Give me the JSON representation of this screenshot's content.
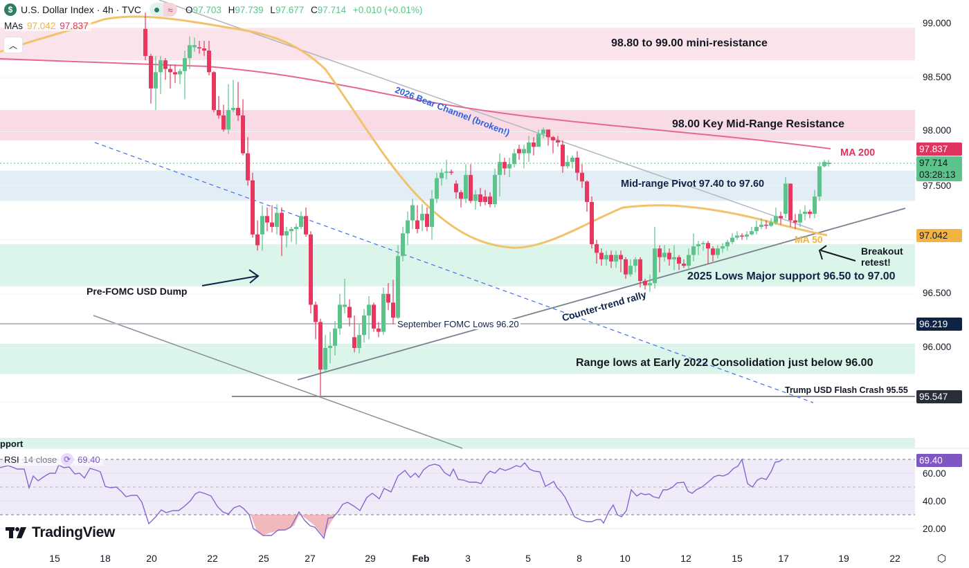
{
  "header": {
    "symbol_icon": "dollar-icon",
    "title": "U.S. Dollar Index · 4h · TVC",
    "ohlc": {
      "O": "97.703",
      "H": "97.739",
      "L": "97.677",
      "C": "97.714",
      "change": "+0.010 (+0.01%)"
    },
    "mas_label": "MAs",
    "ma50_value": "97.042",
    "ma200_value": "97.837",
    "collapse_icon": "chevron-up-icon"
  },
  "price_axis": {
    "ticks": [
      "99.000",
      "98.500",
      "98.000",
      "97.500",
      "96.500",
      "96.000"
    ],
    "tags": {
      "ma200": {
        "value": "97.837",
        "color": "#e0345e"
      },
      "last": {
        "value": "97.714",
        "countdown": "03:28:13",
        "color": "#5cc38a"
      },
      "ma50": {
        "value": "97.042",
        "color": "#f0b443"
      },
      "fomc": {
        "value": "96.219",
        "color": "#0f2347"
      },
      "flash": {
        "value": "95.547",
        "color": "#2a2e39"
      },
      "rsi": {
        "value": "69.40",
        "color": "#7e57c2"
      }
    }
  },
  "rsi_axis": {
    "ticks": [
      "60.00",
      "40.00",
      "20.00"
    ]
  },
  "rsi_legend": {
    "label": "RSI",
    "params": "14 close",
    "value": "69.40",
    "icon": "cycle-icon"
  },
  "time_axis": {
    "labels": [
      "15",
      "18",
      "20",
      "22",
      "25",
      "27",
      "29",
      "Feb",
      "3",
      "5",
      "8",
      "10",
      "12",
      "15",
      "17",
      "19",
      "22"
    ]
  },
  "brand": "TradingView",
  "annotations": {
    "mini_resistance": "98.80 to 99.00 mini-resistance",
    "key_resistance": "98.00 Key Mid-Range Resistance",
    "bear_channel": "2026 Bear Channel (broken!)",
    "ma200": "MA 200",
    "ma50": "MA 50",
    "pivot": "Mid-range Pivot 97.40 to 97.60",
    "breakout": "Breakout",
    "breakout2": "retest!",
    "lows_support": "2025 Lows Major support 96.50 to 97.00",
    "pre_fomc": "Pre-FOMC USD Dump",
    "counter_trend": "Counter-trend rally",
    "sept_fomc": "September FOMC Lows 96.20",
    "range_lows": "Range lows at Early 2022 Consolidation just below 96.00",
    "flash_crash": "Trump USD Flash Crash 95.55",
    "support_cut": "pport"
  },
  "chart_data": {
    "type": "candlestick",
    "title": "U.S. Dollar Index · 4h · TVC",
    "xlabel": "",
    "ylabel": "Price",
    "ylim": [
      95.3,
      99.2
    ],
    "x_ticks": [
      "15",
      "18",
      "20",
      "22",
      "25",
      "27",
      "29",
      "Feb",
      "3",
      "5",
      "8",
      "10",
      "12",
      "15",
      "17",
      "19",
      "22"
    ],
    "zones": [
      {
        "name": "98.80 to 99.00 mini-resistance",
        "from": 98.66,
        "to": 98.96,
        "color": "#fbe3ec"
      },
      {
        "name": "98.00 Key Mid-Range Resistance",
        "from": 97.92,
        "to": 98.2,
        "color": "#f9dbe5"
      },
      {
        "name": "Mid-range Pivot 97.40 to 97.60",
        "from": 97.36,
        "to": 97.64,
        "color": "#e2eef5"
      },
      {
        "name": "2025 Lows Major support 96.50 to 97.00",
        "from": 96.57,
        "to": 96.96,
        "color": "#dcf5ea"
      },
      {
        "name": "Range lows just below 96.00",
        "from": 95.76,
        "to": 96.04,
        "color": "#dcf5ea"
      }
    ],
    "levels": [
      {
        "name": "September FOMC Lows 96.20",
        "value": 96.219
      },
      {
        "name": "Trump USD Flash Crash 95.55",
        "value": 95.547
      }
    ],
    "ma50_last": 97.042,
    "ma200_last": 97.837,
    "last_close": 97.714,
    "candles": [
      [
        210,
        98.95,
        98.7,
        99.1,
        98.66,
        0
      ],
      [
        218,
        98.7,
        98.4,
        98.72,
        98.26,
        0
      ],
      [
        225,
        98.4,
        98.55,
        98.7,
        98.2,
        1
      ],
      [
        232,
        98.55,
        98.66,
        98.7,
        98.35,
        1
      ],
      [
        239,
        98.66,
        98.58,
        98.68,
        98.48,
        0
      ],
      [
        246,
        98.58,
        98.55,
        98.62,
        98.4,
        0
      ],
      [
        253,
        98.55,
        98.53,
        98.62,
        98.45,
        0
      ],
      [
        260,
        98.53,
        98.56,
        98.58,
        98.44,
        1
      ],
      [
        267,
        98.56,
        98.68,
        98.75,
        98.3,
        1
      ],
      [
        274,
        98.68,
        98.8,
        98.88,
        98.58,
        1
      ],
      [
        281,
        98.8,
        98.78,
        98.87,
        98.74,
        1
      ],
      [
        288,
        98.78,
        98.77,
        98.84,
        98.72,
        0
      ],
      [
        295,
        98.77,
        98.75,
        98.84,
        98.7,
        0
      ],
      [
        302,
        98.75,
        98.55,
        98.84,
        98.52,
        0
      ],
      [
        309,
        98.55,
        98.2,
        98.56,
        98.18,
        0
      ],
      [
        316,
        98.2,
        98.15,
        98.33,
        98.12,
        0
      ],
      [
        323,
        98.15,
        98.02,
        98.25,
        98.0,
        0
      ],
      [
        330,
        98.02,
        98.2,
        98.44,
        97.98,
        1
      ],
      [
        337,
        98.2,
        98.22,
        98.48,
        98.18,
        1
      ],
      [
        344,
        98.22,
        98.15,
        98.46,
        98.1,
        0
      ],
      [
        351,
        98.15,
        97.8,
        98.3,
        97.78,
        0
      ],
      [
        358,
        97.8,
        97.55,
        97.95,
        97.5,
        0
      ],
      [
        365,
        97.55,
        97.05,
        97.62,
        97.02,
        0
      ],
      [
        372,
        97.05,
        96.95,
        97.18,
        96.9,
        0
      ],
      [
        379,
        97.05,
        97.22,
        97.32,
        96.9,
        1
      ],
      [
        386,
        97.22,
        97.16,
        97.3,
        97.08,
        0
      ],
      [
        393,
        97.16,
        97.12,
        97.32,
        97.07,
        0
      ],
      [
        400,
        97.12,
        97.25,
        97.33,
        97.05,
        1
      ],
      [
        407,
        97.25,
        97.04,
        97.3,
        96.85,
        0
      ],
      [
        414,
        97.04,
        97.08,
        97.12,
        96.93,
        1
      ],
      [
        421,
        97.08,
        97.1,
        97.12,
        96.98,
        1
      ],
      [
        428,
        97.1,
        97.12,
        97.15,
        96.96,
        1
      ],
      [
        435,
        97.12,
        97.22,
        97.26,
        97.1,
        1
      ],
      [
        442,
        97.22,
        97.05,
        97.3,
        97.03,
        0
      ],
      [
        449,
        97.05,
        96.4,
        97.08,
        96.32,
        0
      ],
      [
        456,
        96.4,
        96.24,
        96.43,
        96.08,
        0
      ],
      [
        463,
        96.24,
        95.8,
        96.27,
        95.56,
        0
      ],
      [
        470,
        95.8,
        96.0,
        96.12,
        95.78,
        1
      ],
      [
        477,
        96.0,
        96.02,
        96.15,
        95.86,
        1
      ],
      [
        484,
        96.02,
        96.18,
        96.25,
        95.93,
        1
      ],
      [
        491,
        96.18,
        96.4,
        96.5,
        96.12,
        1
      ],
      [
        498,
        96.4,
        96.38,
        96.64,
        96.32,
        1
      ],
      [
        505,
        96.38,
        96.28,
        96.45,
        96.2,
        0
      ],
      [
        512,
        96.1,
        96.0,
        96.3,
        95.96,
        0
      ],
      [
        519,
        96.0,
        96.12,
        96.22,
        95.95,
        1
      ],
      [
        526,
        96.12,
        96.3,
        96.36,
        96.05,
        1
      ],
      [
        533,
        96.3,
        96.4,
        96.48,
        96.08,
        1
      ],
      [
        540,
        96.4,
        96.18,
        96.42,
        96.15,
        0
      ],
      [
        547,
        96.18,
        96.15,
        96.24,
        96.1,
        0
      ],
      [
        554,
        96.15,
        96.5,
        96.56,
        96.12,
        1
      ],
      [
        561,
        96.5,
        96.42,
        96.6,
        96.35,
        0
      ],
      [
        568,
        96.42,
        96.28,
        96.63,
        96.22,
        0
      ],
      [
        575,
        96.28,
        96.85,
        96.95,
        96.25,
        1
      ],
      [
        582,
        96.85,
        97.06,
        97.12,
        96.8,
        1
      ],
      [
        589,
        97.06,
        97.18,
        97.26,
        96.95,
        1
      ],
      [
        596,
        97.18,
        97.32,
        97.38,
        97.1,
        1
      ],
      [
        603,
        97.1,
        97.18,
        97.32,
        97.06,
        0
      ],
      [
        610,
        97.18,
        97.24,
        97.33,
        97.08,
        1
      ],
      [
        617,
        97.24,
        97.12,
        97.3,
        97.08,
        0
      ],
      [
        624,
        97.12,
        97.38,
        97.46,
        97.0,
        1
      ],
      [
        631,
        97.38,
        97.57,
        97.62,
        97.34,
        1
      ],
      [
        638,
        97.57,
        97.62,
        97.66,
        97.5,
        1
      ],
      [
        645,
        97.62,
        97.63,
        97.74,
        97.56,
        1
      ],
      [
        652,
        97.63,
        97.62,
        97.65,
        97.6,
        0
      ],
      [
        659,
        97.52,
        97.44,
        97.55,
        97.38,
        0
      ],
      [
        666,
        97.44,
        97.38,
        97.46,
        97.3,
        0
      ],
      [
        673,
        97.38,
        97.6,
        97.7,
        97.34,
        1
      ],
      [
        680,
        97.6,
        97.36,
        97.7,
        97.34,
        0
      ],
      [
        687,
        97.36,
        97.42,
        97.46,
        97.28,
        1
      ],
      [
        694,
        97.42,
        97.35,
        97.48,
        97.31,
        0
      ],
      [
        701,
        97.35,
        97.4,
        97.46,
        97.32,
        0
      ],
      [
        708,
        97.4,
        97.33,
        97.44,
        97.3,
        0
      ],
      [
        715,
        97.33,
        97.6,
        97.66,
        97.3,
        1
      ],
      [
        722,
        97.6,
        97.72,
        97.8,
        97.4,
        1
      ],
      [
        729,
        97.72,
        97.66,
        97.76,
        97.6,
        0
      ],
      [
        736,
        97.66,
        97.7,
        97.76,
        97.58,
        1
      ],
      [
        743,
        97.7,
        97.8,
        97.84,
        97.67,
        1
      ],
      [
        750,
        97.8,
        97.84,
        97.88,
        97.74,
        0
      ],
      [
        757,
        97.84,
        97.8,
        97.88,
        97.66,
        1
      ],
      [
        764,
        97.8,
        97.9,
        97.96,
        97.72,
        1
      ],
      [
        771,
        97.9,
        97.86,
        97.95,
        97.78,
        0
      ],
      [
        778,
        97.86,
        97.98,
        98.02,
        97.86,
        1
      ],
      [
        785,
        97.98,
        98.02,
        98.04,
        97.94,
        1
      ],
      [
        792,
        98.02,
        97.95,
        98.0,
        97.87,
        0
      ],
      [
        799,
        97.95,
        97.92,
        97.96,
        97.8,
        0
      ],
      [
        806,
        97.92,
        97.9,
        97.96,
        97.86,
        0
      ],
      [
        813,
        97.88,
        97.68,
        97.92,
        97.62,
        0
      ],
      [
        820,
        97.68,
        97.72,
        97.78,
        97.66,
        1
      ],
      [
        827,
        97.72,
        97.76,
        97.78,
        97.66,
        1
      ],
      [
        834,
        97.76,
        97.62,
        97.82,
        97.55,
        0
      ],
      [
        841,
        97.62,
        97.54,
        97.7,
        97.48,
        0
      ],
      [
        848,
        97.54,
        97.35,
        97.55,
        97.26,
        0
      ],
      [
        855,
        97.35,
        96.96,
        97.4,
        96.92,
        0
      ],
      [
        862,
        96.96,
        96.88,
        97.0,
        96.78,
        0
      ],
      [
        869,
        96.88,
        96.82,
        96.92,
        96.76,
        0
      ],
      [
        876,
        96.82,
        96.86,
        96.9,
        96.76,
        1
      ],
      [
        883,
        96.86,
        96.8,
        96.9,
        96.74,
        0
      ],
      [
        890,
        96.8,
        96.86,
        96.9,
        96.74,
        1
      ],
      [
        897,
        96.86,
        96.82,
        96.9,
        96.7,
        0
      ],
      [
        904,
        96.82,
        96.68,
        96.84,
        96.64,
        0
      ],
      [
        911,
        96.68,
        96.76,
        96.82,
        96.66,
        1
      ],
      [
        918,
        96.76,
        96.82,
        96.84,
        96.7,
        1
      ],
      [
        925,
        96.82,
        96.62,
        96.84,
        96.56,
        0
      ],
      [
        932,
        96.62,
        96.58,
        96.64,
        96.54,
        0
      ],
      [
        939,
        96.58,
        96.6,
        96.68,
        96.52,
        1
      ],
      [
        946,
        96.6,
        96.92,
        97.12,
        96.55,
        1
      ],
      [
        953,
        96.92,
        96.84,
        96.95,
        96.7,
        0
      ],
      [
        960,
        96.84,
        96.88,
        96.95,
        96.8,
        1
      ],
      [
        967,
        96.88,
        96.82,
        96.92,
        96.76,
        0
      ],
      [
        974,
        96.82,
        96.84,
        96.95,
        96.72,
        1
      ],
      [
        981,
        96.84,
        96.78,
        96.86,
        96.72,
        0
      ],
      [
        988,
        96.78,
        96.76,
        96.82,
        96.74,
        0
      ],
      [
        995,
        96.76,
        96.86,
        96.92,
        96.72,
        1
      ],
      [
        1002,
        96.86,
        96.94,
        97.06,
        96.8,
        1
      ],
      [
        1009,
        96.94,
        96.96,
        96.99,
        96.86,
        1
      ],
      [
        1016,
        96.96,
        96.97,
        96.99,
        96.9,
        1
      ],
      [
        1023,
        96.97,
        96.92,
        96.99,
        96.78,
        0
      ],
      [
        1030,
        96.92,
        96.86,
        96.94,
        96.8,
        0
      ],
      [
        1037,
        96.86,
        96.92,
        96.95,
        96.83,
        1
      ],
      [
        1044,
        96.92,
        96.94,
        96.97,
        96.88,
        1
      ],
      [
        1051,
        96.94,
        96.98,
        97.0,
        96.9,
        1
      ],
      [
        1058,
        96.98,
        97.02,
        97.06,
        96.96,
        1
      ],
      [
        1065,
        97.02,
        97.04,
        97.08,
        97.0,
        1
      ],
      [
        1072,
        97.04,
        97.03,
        97.06,
        97.0,
        0
      ],
      [
        1079,
        97.03,
        97.05,
        97.08,
        97.0,
        1
      ],
      [
        1086,
        97.05,
        97.08,
        97.12,
        97.04,
        1
      ],
      [
        1093,
        97.08,
        97.12,
        97.18,
        97.05,
        1
      ],
      [
        1100,
        97.12,
        97.14,
        97.2,
        97.1,
        1
      ],
      [
        1107,
        97.14,
        97.13,
        97.18,
        97.1,
        0
      ],
      [
        1114,
        97.13,
        97.16,
        97.2,
        97.12,
        1
      ],
      [
        1121,
        97.16,
        97.22,
        97.3,
        97.14,
        1
      ],
      [
        1128,
        97.22,
        97.2,
        97.26,
        97.14,
        0
      ],
      [
        1135,
        97.24,
        97.52,
        97.58,
        97.2,
        1
      ],
      [
        1142,
        97.52,
        97.18,
        97.52,
        97.12,
        0
      ],
      [
        1149,
        97.18,
        97.16,
        97.24,
        97.1,
        0
      ],
      [
        1156,
        97.16,
        97.24,
        97.28,
        97.12,
        1
      ],
      [
        1163,
        97.24,
        97.26,
        97.32,
        97.18,
        1
      ],
      [
        1170,
        97.26,
        97.24,
        97.28,
        97.2,
        0
      ],
      [
        1177,
        97.24,
        97.4,
        97.46,
        97.2,
        1
      ],
      [
        1184,
        97.4,
        97.68,
        97.72,
        97.36,
        1
      ],
      [
        1191,
        97.68,
        97.72,
        97.74,
        97.67,
        1
      ],
      [
        1197,
        97.7,
        97.714,
        97.739,
        97.677,
        1
      ]
    ],
    "rsi": {
      "ylim": [
        10,
        80
      ],
      "levels": [
        70,
        50,
        30
      ],
      "last": 69.4
    }
  }
}
